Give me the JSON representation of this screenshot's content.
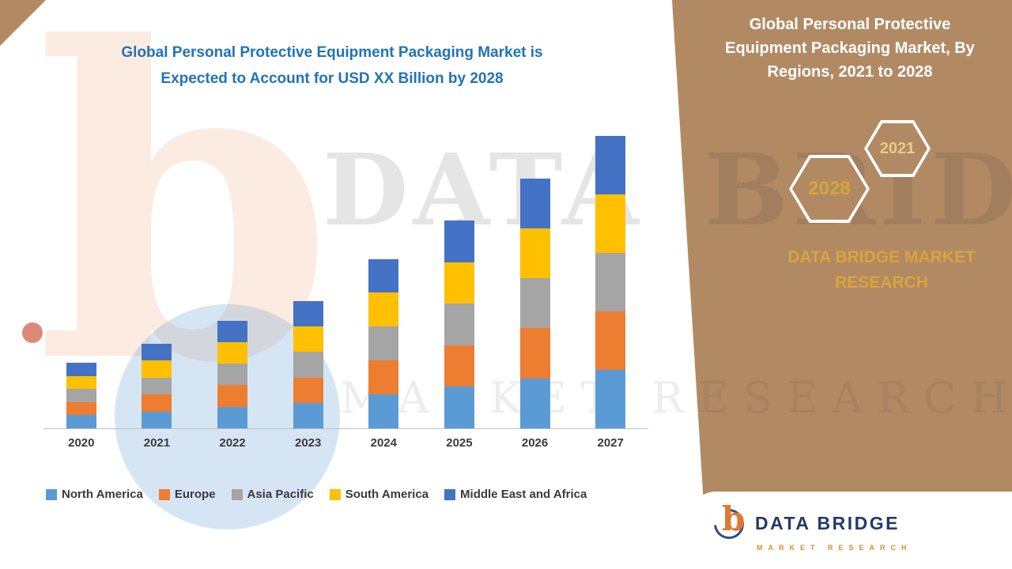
{
  "main": {
    "title_line1": "Global Personal Protective Equipment Packaging Market is",
    "title_line2": "Expected to Account for USD XX Billion by 2028"
  },
  "chart_data": {
    "type": "bar",
    "stacked": true,
    "title": "Global Personal Protective Equipment Packaging Market is Expected to Account for USD XX Billion by 2028",
    "categories": [
      "2020",
      "2021",
      "2022",
      "2023",
      "2024",
      "2025",
      "2026",
      "2027"
    ],
    "series": [
      {
        "name": "North America",
        "color": "#5B9BD5",
        "values": [
          17,
          22,
          28,
          33,
          44,
          54,
          65,
          76
        ]
      },
      {
        "name": "Europe",
        "color": "#ED7D31",
        "values": [
          17,
          22,
          28,
          33,
          44,
          54,
          65,
          76
        ]
      },
      {
        "name": "Asia Pacific",
        "color": "#A5A5A5",
        "values": [
          17,
          22,
          28,
          33,
          44,
          54,
          65,
          76
        ]
      },
      {
        "name": "South America",
        "color": "#FFC000",
        "values": [
          17,
          22,
          28,
          33,
          44,
          54,
          65,
          76
        ]
      },
      {
        "name": "Middle East and Africa",
        "color": "#4472C4",
        "values": [
          17,
          22,
          28,
          33,
          44,
          54,
          65,
          76
        ]
      }
    ],
    "xlabel": "",
    "ylabel": "",
    "ylim": [
      0,
      390
    ],
    "grid": false,
    "legend_position": "bottom"
  },
  "sidebar": {
    "title": "Global Personal Protective Equipment Packaging Market, By Regions, 2021 to 2028",
    "hexagons": [
      {
        "label": "2028"
      },
      {
        "label": "2021"
      }
    ],
    "brand": "DATA BRIDGE MARKET RESEARCH"
  },
  "footer_logo": {
    "brand": "DATA BRIDGE",
    "sub": "MARKET RESEARCH"
  },
  "watermark": {
    "line1": "DATA BRIDGE",
    "line2": "MARKET RESEARCH"
  },
  "colors": {
    "panel": "#B18A64",
    "title_blue": "#2173B9",
    "gold": "#D9A43C"
  }
}
